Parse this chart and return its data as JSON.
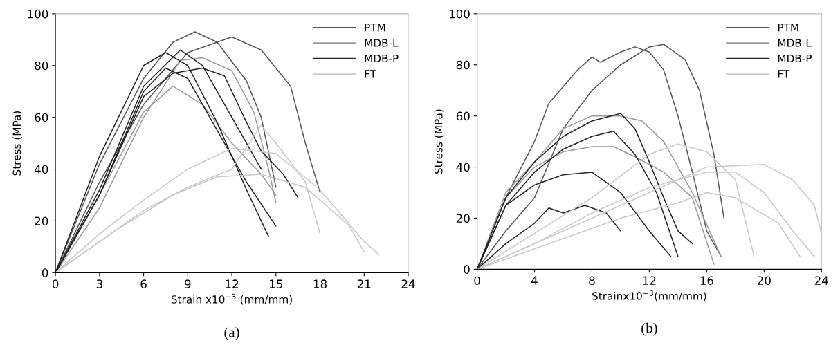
{
  "chart_data": [
    {
      "type": "line",
      "xlabel": "Strain x10$^{−3}$ (mm/mm)",
      "ylabel": "Stress (MPa)",
      "xlim": [
        0,
        24
      ],
      "xticks": [
        0,
        3,
        6,
        9,
        12,
        15,
        18,
        21,
        24
      ],
      "ylim": [
        0,
        100
      ],
      "yticks": [
        0,
        20,
        40,
        60,
        80,
        100
      ],
      "grid": false,
      "legend": "top right",
      "annotations": [
        "(a)"
      ],
      "series": [
        {
          "name": "PTM",
          "color": "#555555",
          "x": [
            0,
            3,
            6,
            9,
            10.5,
            12,
            14,
            16,
            17,
            18
          ],
          "values": [
            0,
            35,
            65,
            85,
            88,
            91,
            86,
            72,
            50,
            31
          ]
        },
        {
          "color": "#555555",
          "x": [
            0,
            3,
            6,
            8,
            9.5,
            11,
            13,
            14,
            15
          ],
          "values": [
            0,
            42,
            75,
            89,
            93,
            89,
            74,
            60,
            33
          ]
        },
        {
          "name": "MDB-L",
          "color": "#999999",
          "x": [
            0,
            3,
            6,
            8.5,
            10,
            12,
            13.5,
            14.5,
            15
          ],
          "values": [
            0,
            25,
            60,
            82,
            83,
            78,
            62,
            40,
            27
          ]
        },
        {
          "color": "#999999",
          "x": [
            0,
            3,
            6,
            8,
            10,
            12,
            14,
            15
          ],
          "values": [
            0,
            30,
            62,
            72,
            65,
            50,
            38,
            30
          ]
        },
        {
          "name": "MDB-P",
          "color": "#222222",
          "x": [
            0,
            3,
            6,
            7.5,
            9,
            11,
            13,
            14.5
          ],
          "values": [
            0,
            45,
            80,
            85,
            80,
            58,
            32,
            14
          ]
        },
        {
          "color": "#222222",
          "x": [
            0,
            3,
            6,
            8,
            10,
            11.5,
            13,
            14,
            15.5,
            16.5
          ],
          "values": [
            0,
            30,
            68,
            77,
            79,
            76,
            58,
            47,
            38,
            29
          ]
        },
        {
          "color": "#222222",
          "x": [
            0,
            3,
            6,
            7.5,
            9,
            11,
            13,
            15
          ],
          "values": [
            0,
            30,
            70,
            79,
            75,
            55,
            35,
            18
          ]
        },
        {
          "color": "#222222",
          "x": [
            0,
            3,
            6,
            8.5,
            10,
            12,
            14
          ],
          "values": [
            0,
            32,
            72,
            86,
            80,
            60,
            40
          ]
        },
        {
          "name": "FT",
          "color": "#c8c8c8",
          "x": [
            0,
            3,
            6,
            9,
            12,
            15,
            18,
            21,
            22
          ],
          "values": [
            0,
            15,
            28,
            40,
            48,
            46,
            32,
            12,
            7
          ]
        },
        {
          "color": "#c8c8c8",
          "x": [
            0,
            3,
            6,
            9,
            12,
            14,
            15,
            17,
            18
          ],
          "values": [
            0,
            12,
            24,
            33,
            40,
            57,
            50,
            35,
            15
          ]
        },
        {
          "color": "#c8c8c8",
          "x": [
            0,
            4,
            8,
            11,
            14,
            17,
            20,
            21
          ],
          "values": [
            0,
            16,
            30,
            37,
            38,
            33,
            18,
            8
          ]
        }
      ]
    },
    {
      "type": "line",
      "xlabel": "Strainx10$^{−3}$(mm/mm)",
      "ylabel": "Stress (MPa)",
      "xlim": [
        0,
        24
      ],
      "xticks": [
        0,
        4,
        8,
        12,
        16,
        20,
        24
      ],
      "ylim": [
        0,
        100
      ],
      "yticks": [
        0,
        20,
        40,
        60,
        80,
        100
      ],
      "grid": false,
      "legend": "top right",
      "annotations": [
        "(b)"
      ],
      "series": [
        {
          "name": "PTM",
          "color": "#555555",
          "x": [
            0,
            2,
            4,
            5,
            7,
            8,
            8.6,
            10,
            11,
            12,
            13,
            14,
            15,
            16,
            17
          ],
          "values": [
            0,
            28,
            50,
            65,
            78,
            83,
            81,
            85,
            87,
            85,
            78,
            60,
            38,
            15,
            5
          ]
        },
        {
          "color": "#555555",
          "x": [
            0,
            2,
            4,
            6,
            8,
            10,
            12,
            13,
            14.5,
            15.5,
            16.5,
            17.2
          ],
          "values": [
            0,
            15,
            28,
            55,
            70,
            80,
            87,
            88,
            82,
            70,
            45,
            20
          ]
        },
        {
          "name": "MDB-L",
          "color": "#999999",
          "x": [
            0,
            2,
            4,
            6,
            8,
            10,
            11.5,
            13,
            15,
            17
          ],
          "values": [
            0,
            30,
            42,
            55,
            60,
            60,
            58,
            50,
            30,
            5
          ]
        },
        {
          "color": "#999999",
          "x": [
            0,
            2,
            4,
            6,
            8,
            9.5,
            11,
            13,
            15,
            16.5
          ],
          "values": [
            0,
            28,
            40,
            46,
            48,
            48,
            44,
            38,
            28,
            2
          ]
        },
        {
          "name": "MDB-P",
          "color": "#222222",
          "x": [
            0,
            2,
            4,
            6,
            8,
            10,
            11,
            12,
            13,
            14,
            15
          ],
          "values": [
            0,
            28,
            42,
            52,
            58,
            61,
            55,
            42,
            28,
            15,
            10
          ]
        },
        {
          "color": "#222222",
          "x": [
            0,
            2,
            4,
            6,
            8,
            9.5,
            11,
            12.5,
            14
          ],
          "values": [
            0,
            25,
            38,
            47,
            52,
            54,
            45,
            30,
            5
          ]
        },
        {
          "color": "#222222",
          "x": [
            0,
            2,
            4,
            6,
            8,
            10,
            12,
            13.5
          ],
          "values": [
            0,
            25,
            33,
            37,
            38,
            30,
            15,
            5
          ]
        },
        {
          "color": "#222222",
          "x": [
            0,
            2,
            4,
            5,
            6,
            7.5,
            9,
            10
          ],
          "values": [
            0,
            10,
            18,
            24,
            22,
            25,
            22,
            15
          ]
        },
        {
          "name": "FT",
          "color": "#c8c8c8",
          "x": [
            0,
            4,
            8,
            12,
            16,
            18,
            20,
            22,
            23.5
          ],
          "values": [
            0,
            10,
            22,
            32,
            38,
            38,
            30,
            15,
            5
          ]
        },
        {
          "color": "#c8c8c8",
          "x": [
            0,
            4,
            8,
            12,
            16,
            20,
            22,
            23.5,
            24
          ],
          "values": [
            0,
            10,
            20,
            30,
            40,
            41,
            35,
            25,
            14
          ]
        },
        {
          "color": "#c8c8c8",
          "x": [
            0,
            4,
            8,
            12,
            14,
            16,
            18,
            19.3
          ],
          "values": [
            0,
            14,
            28,
            45,
            49,
            46,
            35,
            5
          ]
        },
        {
          "color": "#c8c8c8",
          "x": [
            0,
            6,
            10,
            14,
            16,
            18,
            21,
            22.5
          ],
          "values": [
            0,
            12,
            20,
            26,
            30,
            28,
            18,
            5
          ]
        }
      ]
    }
  ]
}
